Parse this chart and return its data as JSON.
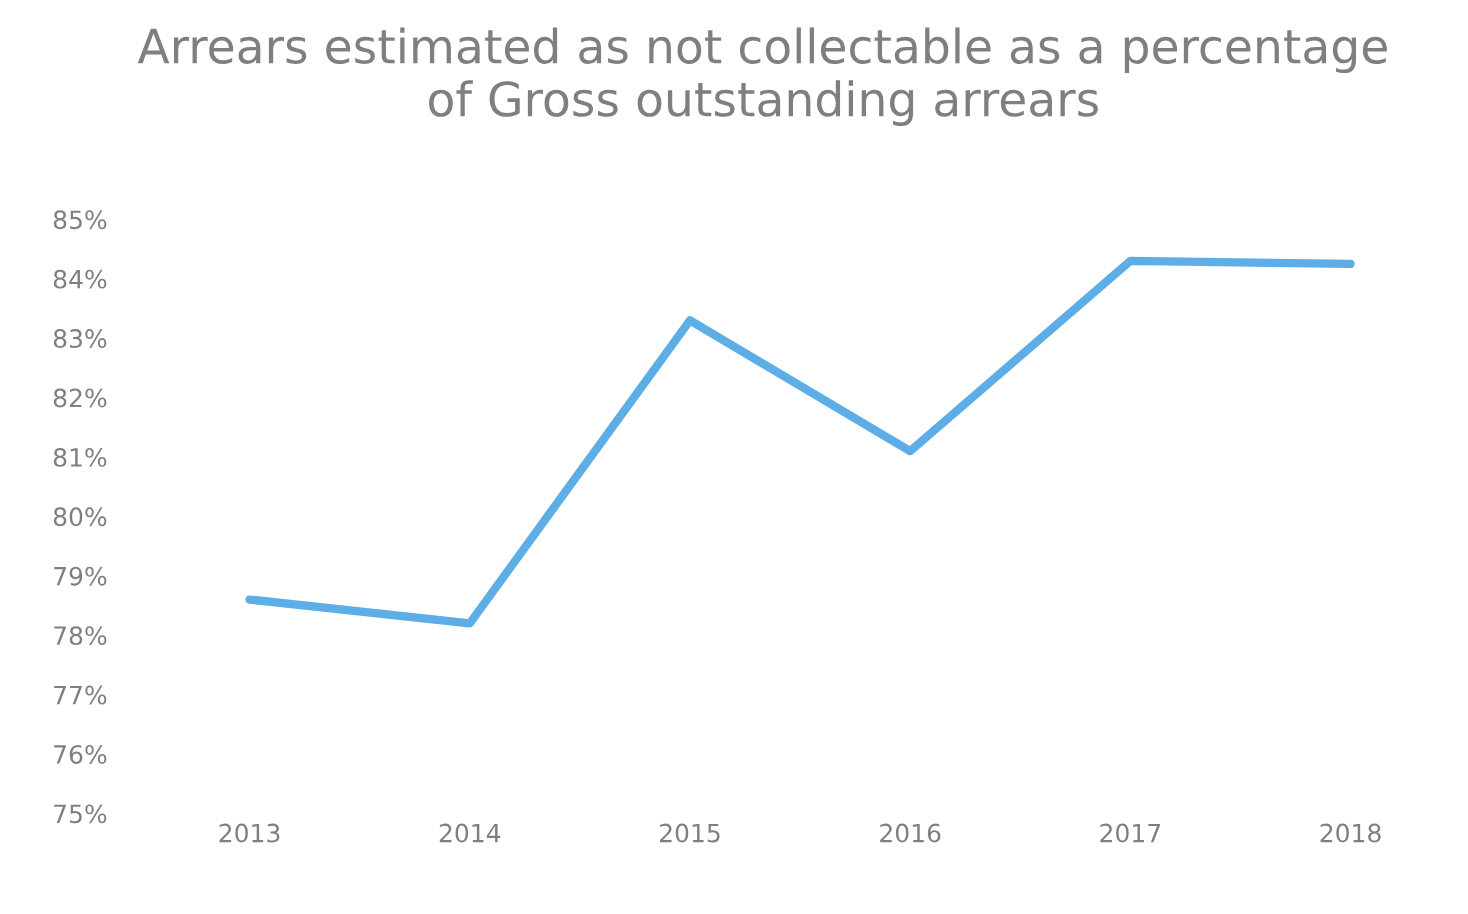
{
  "chart_data": {
    "type": "line",
    "title": "Arrears estimated as not collectable as a percentage of Gross outstanding arrears",
    "categories": [
      "2013",
      "2014",
      "2015",
      "2016",
      "2017",
      "2018"
    ],
    "series": [
      {
        "color": "#5dade6",
        "values": [
          78.6,
          78.2,
          83.3,
          81.1,
          84.3,
          84.25
        ]
      }
    ],
    "ylim": [
      75,
      85
    ],
    "yticks": [
      {
        "value": 75,
        "label": "75%"
      },
      {
        "value": 76,
        "label": "76%"
      },
      {
        "value": 77,
        "label": "77%"
      },
      {
        "value": 78,
        "label": "78%"
      },
      {
        "value": 79,
        "label": "79%"
      },
      {
        "value": 80,
        "label": "80%"
      },
      {
        "value": 81,
        "label": "81%"
      },
      {
        "value": 82,
        "label": "82%"
      },
      {
        "value": 83,
        "label": "83%"
      },
      {
        "value": 84,
        "label": "84%"
      },
      {
        "value": 85,
        "label": "85%"
      }
    ],
    "grid": false
  }
}
